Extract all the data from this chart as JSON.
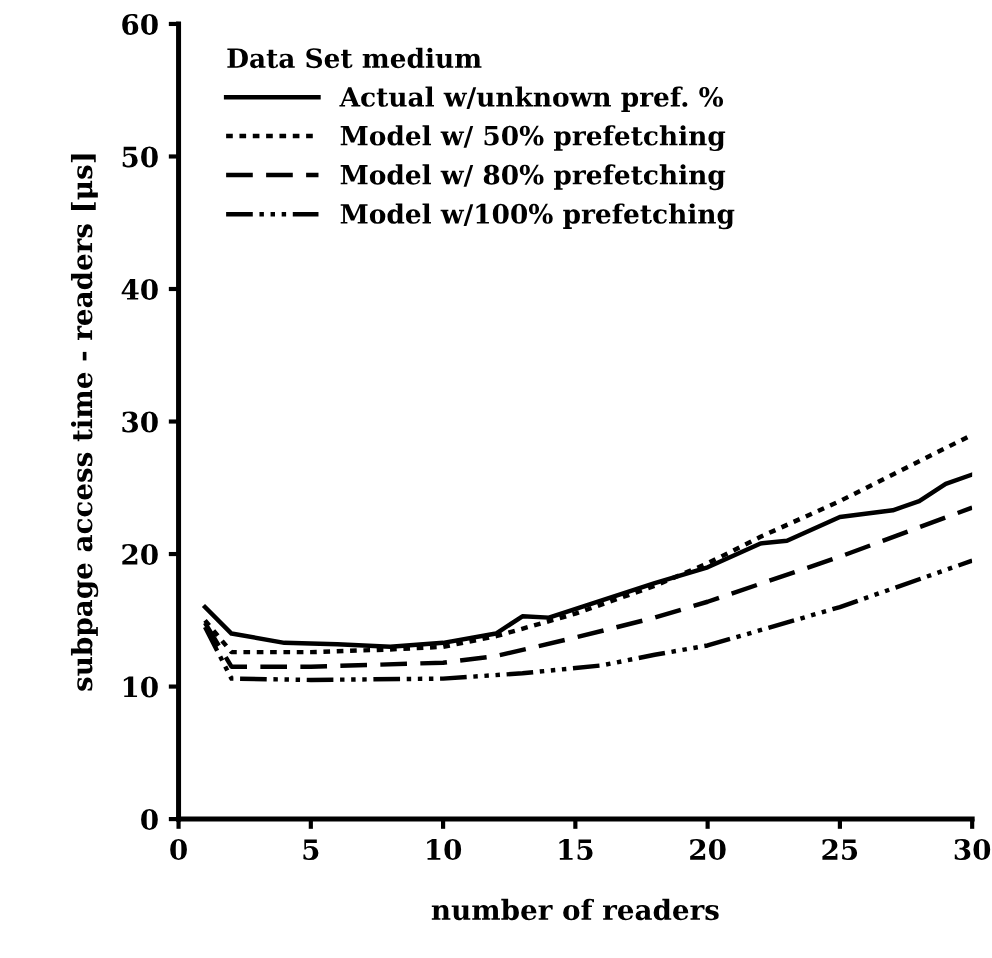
{
  "chart_data": {
    "type": "line",
    "xlabel": "number of readers",
    "ylabel": "subpage access time - readers [μs]",
    "legend_title": "Data Set medium",
    "legend": "top left",
    "xlim": [
      0,
      30
    ],
    "ylim": [
      0,
      60
    ],
    "xticks": [
      0,
      5,
      10,
      15,
      20,
      25,
      30
    ],
    "yticks": [
      0,
      10,
      20,
      30,
      40,
      50,
      60
    ],
    "grid": false,
    "series": [
      {
        "name": "Actual w/unknown pref. %",
        "color": "#000000",
        "line_style": "solid",
        "x": [
          1,
          2,
          4,
          6,
          8,
          10,
          12,
          13,
          14,
          16,
          18,
          20,
          22,
          23,
          25,
          27,
          28,
          29,
          30
        ],
        "values": [
          16,
          14,
          13.3,
          13.2,
          13,
          13.3,
          14,
          15.3,
          15.2,
          16.5,
          17.8,
          19,
          20.8,
          21,
          22.8,
          23.3,
          24,
          25.3,
          26
        ]
      },
      {
        "name": "Model w/ 50% prefetching",
        "color": "#000000",
        "line_style": "dotted",
        "x": [
          1,
          2,
          5,
          8,
          10,
          12,
          15,
          18,
          20,
          22,
          25,
          28,
          30
        ],
        "values": [
          15,
          12.6,
          12.6,
          12.8,
          13,
          13.8,
          15.5,
          17.6,
          19.3,
          21.3,
          24,
          27,
          29
        ]
      },
      {
        "name": "Model w/ 80% prefetching",
        "color": "#000000",
        "line_style": "dashed",
        "x": [
          1,
          2,
          5,
          10,
          12,
          15,
          18,
          20,
          25,
          30
        ],
        "values": [
          14.8,
          11.5,
          11.5,
          11.8,
          12.3,
          13.7,
          15.2,
          16.4,
          19.8,
          23.5
        ]
      },
      {
        "name": "Model w/100% prefetching",
        "color": "#000000",
        "line_style": "dashdotdot",
        "x": [
          1,
          2,
          5,
          10,
          13,
          16,
          18,
          20,
          25,
          30
        ],
        "values": [
          14.5,
          10.6,
          10.5,
          10.6,
          11,
          11.6,
          12.4,
          13.1,
          16,
          19.5
        ]
      }
    ]
  }
}
